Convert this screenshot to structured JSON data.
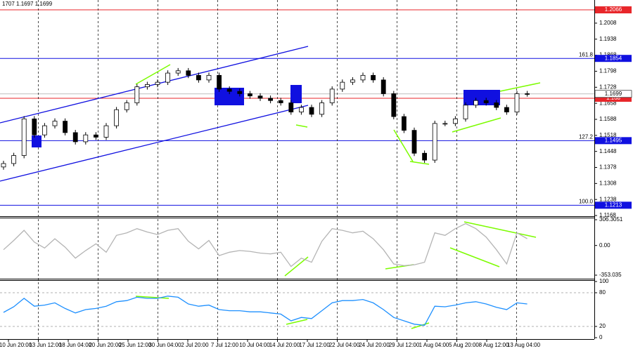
{
  "chart_data": [
    {
      "type": "candlestick",
      "title": "1707 1.1697 1.1699",
      "open": [
        1.138,
        1.1395,
        1.143,
        1.159,
        1.152,
        1.156,
        1.158,
        1.153,
        1.149,
        1.152,
        1.151,
        1.156,
        1.163,
        1.166,
        1.173,
        1.174,
        1.175,
        1.179,
        1.18,
        1.178,
        1.176,
        1.178,
        1.172,
        1.171,
        1.17,
        1.169,
        1.168,
        1.167,
        1.166,
        1.162,
        1.164,
        1.161,
        1.166,
        1.172,
        1.175,
        1.176,
        1.178,
        1.176,
        1.17,
        1.16,
        1.154,
        1.144,
        1.141,
        1.157,
        1.157,
        1.159,
        1.165,
        1.167,
        1.166,
        1.164,
        1.162,
        1.17
      ],
      "high": [
        1.1407,
        1.1442,
        1.1602,
        1.1602,
        1.1572,
        1.1592,
        1.1592,
        1.1542,
        1.1532,
        1.1532,
        1.1572,
        1.1642,
        1.1672,
        1.1742,
        1.1752,
        1.1762,
        1.1802,
        1.1812,
        1.1812,
        1.1792,
        1.1792,
        1.1792,
        1.1732,
        1.1722,
        1.1712,
        1.1702,
        1.1692,
        1.1682,
        1.1672,
        1.1652,
        1.1652,
        1.1672,
        1.1732,
        1.1762,
        1.1772,
        1.1792,
        1.1792,
        1.1772,
        1.1712,
        1.1612,
        1.1552,
        1.1452,
        1.1582,
        1.1582,
        1.1602,
        1.1662,
        1.1682,
        1.1682,
        1.1672,
        1.1652,
        1.1712,
        1.1712
      ],
      "low": [
        1.1368,
        1.1383,
        1.1418,
        1.1508,
        1.1508,
        1.1548,
        1.1518,
        1.1478,
        1.1478,
        1.1498,
        1.1498,
        1.1548,
        1.1618,
        1.1648,
        1.1718,
        1.1728,
        1.1738,
        1.1778,
        1.1768,
        1.1748,
        1.1748,
        1.1708,
        1.1698,
        1.1688,
        1.1678,
        1.1668,
        1.1658,
        1.1648,
        1.1608,
        1.1608,
        1.1598,
        1.1598,
        1.1648,
        1.1708,
        1.1738,
        1.1748,
        1.1748,
        1.1688,
        1.1588,
        1.1528,
        1.1428,
        1.1398,
        1.1398,
        1.1558,
        1.1558,
        1.1578,
        1.1638,
        1.1648,
        1.1628,
        1.1608,
        1.1608,
        1.1687
      ],
      "close": [
        1.1395,
        1.143,
        1.159,
        1.152,
        1.156,
        1.158,
        1.153,
        1.149,
        1.152,
        1.151,
        1.156,
        1.163,
        1.166,
        1.173,
        1.174,
        1.175,
        1.179,
        1.18,
        1.178,
        1.176,
        1.178,
        1.172,
        1.171,
        1.17,
        1.169,
        1.168,
        1.167,
        1.166,
        1.162,
        1.164,
        1.161,
        1.166,
        1.172,
        1.175,
        1.176,
        1.178,
        1.176,
        1.17,
        1.16,
        1.154,
        1.144,
        1.141,
        1.157,
        1.157,
        1.159,
        1.165,
        1.167,
        1.166,
        1.164,
        1.162,
        1.17,
        1.1699
      ],
      "ylim": [
        1.1165,
        1.2109
      ],
      "yticks": [
        1.2008,
        1.1938,
        1.1868,
        1.1798,
        1.1728,
        1.1658,
        1.1588,
        1.1518,
        1.1448,
        1.1378,
        1.1308,
        1.1238,
        1.1168
      ],
      "levels": [
        {
          "value": 1.2066,
          "color": "#e8262a"
        },
        {
          "value": 1.1854,
          "color": "#1010e0",
          "label": "161.8"
        },
        {
          "value": 1.168,
          "color": "#e8262a"
        },
        {
          "value": 1.1495,
          "color": "#1010e0",
          "label": "127.2"
        },
        {
          "value": 1.1213,
          "color": "#1010e0",
          "label": "100.0"
        }
      ],
      "last_price": 1.1699,
      "x_labels": [
        "10 Jun 20:00",
        "13 Jun 12:00",
        "18 Jun 04:00",
        "20 Jun 20:00",
        "25 Jun 12:00",
        "30 Jun 04:00",
        "2 Jul 20:00",
        "7 Jul 12:00",
        "10 Jul 04:00",
        "14 Jul 20:00",
        "17 Jul 12:00",
        "22 Jul 04:00",
        "24 Jul 20:00",
        "29 Jul 12:00",
        "1 Aug 04:00",
        "5 Aug 20:00",
        "8 Aug 12:00",
        "13 Aug 04:00"
      ],
      "grid": true
    },
    {
      "type": "line",
      "color": "#b4b4b4",
      "values": [
        -50,
        60,
        180,
        40,
        -30,
        80,
        -20,
        -150,
        -60,
        20,
        -80,
        120,
        150,
        200,
        160,
        130,
        180,
        200,
        50,
        -40,
        60,
        -120,
        -80,
        -60,
        -70,
        -90,
        -100,
        -80,
        -250,
        -150,
        -200,
        50,
        200,
        180,
        150,
        170,
        80,
        -50,
        -220,
        -240,
        -230,
        -200,
        150,
        120,
        200,
        260,
        200,
        100,
        -50,
        -220,
        150,
        80
      ],
      "ylim": [
        -395,
        323
      ],
      "yticks": [
        306.3051,
        {
          "value": 0,
          "label": "0.00"
        },
        -353.035
      ]
    },
    {
      "type": "line",
      "color": "#1e90ff",
      "values": [
        45,
        55,
        70,
        56,
        58,
        62,
        52,
        44,
        50,
        52,
        56,
        64,
        66,
        72,
        70,
        70,
        74,
        72,
        60,
        56,
        58,
        50,
        48,
        48,
        46,
        46,
        44,
        42,
        30,
        36,
        34,
        48,
        62,
        66,
        66,
        68,
        62,
        50,
        36,
        30,
        24,
        22,
        56,
        55,
        58,
        62,
        64,
        60,
        54,
        50,
        62,
        60
      ],
      "ylim": [
        -2.5,
        102.5
      ],
      "yticks": [
        100,
        80,
        20,
        0
      ],
      "levels": [
        80,
        20
      ]
    }
  ]
}
